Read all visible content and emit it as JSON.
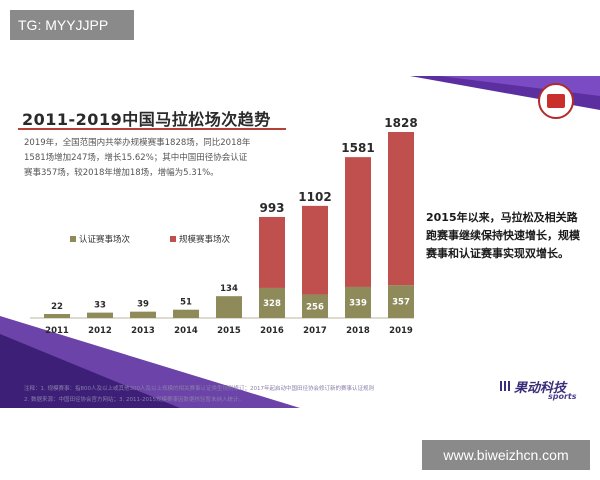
{
  "watermark_top": "TG: MYYJJPP",
  "watermark_bottom": "www.biweizhcn.com",
  "description": "2019年，全国范围内共举办规模赛事1828场，同比2018年1581场增加247场，增长15.62%；其中中国田径协会认证赛事357场，较2018年增加18场，增幅为5.31%。",
  "side_text": "2015年以来，马拉松及相关路跑赛事继续保持快速增长，规模赛事和认证赛事实现双增长。",
  "footer": {
    "line1": "注释：1. 规模赛事：指800人及以上或其他300人及以上规模的相关赛事认证类型规则修订；2017年起启动中国田径协会修订新的赛事认证规则",
    "line2": "2. 数据来源：中国田径协会官方网站；3. 2011-2015规模赛事因数据核验暂未纳入统计。"
  },
  "brand": {
    "name": "果动科技",
    "sub": "sports"
  },
  "colors": {
    "certified": "#8e8a5a",
    "scale": "#c0504d",
    "title_rule": "#b5403a",
    "purple": "#5b2fa0"
  },
  "chart_data": {
    "type": "bar",
    "title": "2011-2019中国马拉松场次趋势",
    "categories": [
      "2011",
      "2012",
      "2013",
      "2014",
      "2015",
      "2016",
      "2017",
      "2018",
      "2019"
    ],
    "series": [
      {
        "name": "认证赛事场次",
        "values": [
          22,
          33,
          39,
          51,
          134,
          328,
          256,
          339,
          357
        ]
      },
      {
        "name": "规模赛事场次",
        "values": [
          null,
          null,
          null,
          null,
          null,
          993,
          1102,
          1581,
          1828
        ]
      }
    ],
    "bar_labels": [
      "22",
      "33",
      "39",
      "51",
      "134",
      "993",
      "1102",
      "1581",
      "1828"
    ],
    "inner_labels": [
      "",
      "",
      "",
      "",
      "",
      "328",
      "256",
      "339",
      "357"
    ],
    "ylim": [
      0,
      1828
    ],
    "grid": false,
    "legend_position": "left-middle",
    "xlabel": "",
    "ylabel": ""
  }
}
